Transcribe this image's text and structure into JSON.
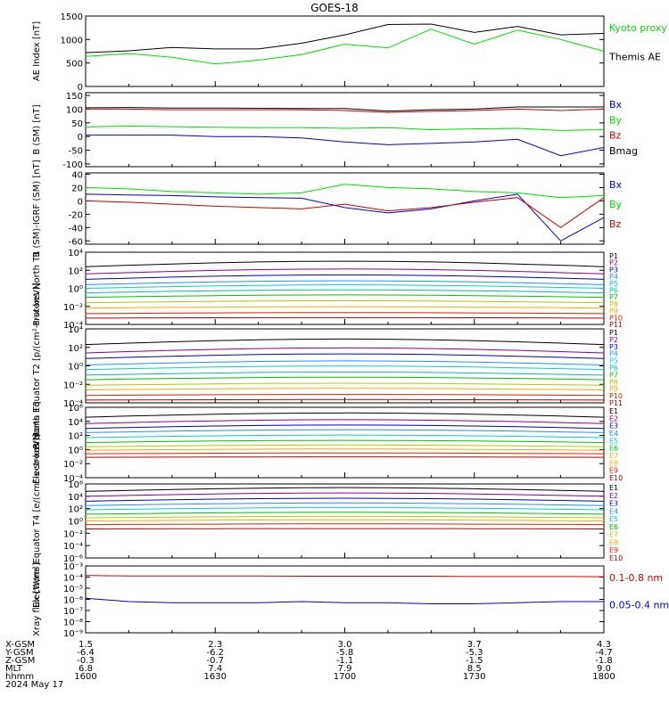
{
  "title": "GOES-18",
  "date": "2024 May 17",
  "colors": {
    "black": "#000000",
    "green": "#00dd00",
    "blue": "#0000cc",
    "red": "#cc0000",
    "P": [
      "#000000",
      "#8b008b",
      "#0000cd",
      "#1e90ff",
      "#00ced1",
      "#00c0a0",
      "#00c000",
      "#b0c800",
      "#ffa500",
      "#dd2200",
      "#b00000"
    ],
    "E": [
      "#000000",
      "#8b008b",
      "#0000cd",
      "#1e90ff",
      "#00ced1",
      "#00c000",
      "#b0c800",
      "#ffa500",
      "#dd2200",
      "#b00000"
    ]
  },
  "time_axis": {
    "ticks": [
      "1600",
      "1630",
      "1700",
      "1730",
      "1800"
    ],
    "rows": [
      {
        "label": "X-GSM",
        "values": [
          "1.5",
          "2.3",
          "3.0",
          "3.7",
          "4.3"
        ]
      },
      {
        "label": "Y-GSM",
        "values": [
          "-6.4",
          "-6.2",
          "-5.8",
          "-5.3",
          "-4.7"
        ]
      },
      {
        "label": "Z-GSM",
        "values": [
          "-0.3",
          "-0.7",
          "-1.1",
          "-1.5",
          "-1.8"
        ]
      },
      {
        "label": "MLT",
        "values": [
          "6.8",
          "7.4",
          "7.9",
          "8.5",
          "9.0"
        ]
      },
      {
        "label": "hhmm",
        "values": [
          "1600",
          "1630",
          "1700",
          "1730",
          "1800"
        ]
      }
    ]
  },
  "chart_data": [
    {
      "type": "line",
      "ylabel": "AE Index [nT]",
      "ylim": [
        0,
        1500
      ],
      "yticks": [
        "0",
        "500",
        "1000",
        "1500"
      ],
      "legend": [
        "Kyoto proxy AE",
        "Themis AE"
      ],
      "x": [
        "1600",
        "1610",
        "1620",
        "1630",
        "1640",
        "1650",
        "1700",
        "1710",
        "1720",
        "1730",
        "1740",
        "1750",
        "1800"
      ],
      "series": [
        {
          "name": "Kyoto proxy AE",
          "color": "green",
          "values": [
            640,
            700,
            620,
            480,
            560,
            680,
            900,
            820,
            1220,
            900,
            1200,
            1000,
            750
          ]
        },
        {
          "name": "Themis AE",
          "color": "black",
          "values": [
            720,
            760,
            830,
            800,
            800,
            920,
            1100,
            1320,
            1330,
            1150,
            1280,
            1100,
            1130
          ]
        }
      ]
    },
    {
      "type": "line",
      "ylabel": "B (SM) [nT]",
      "ylim": [
        -110,
        160
      ],
      "yticks": [
        "-100",
        "-50",
        "0",
        "50",
        "100",
        "150"
      ],
      "legend": [
        "Bx",
        "By",
        "Bz",
        "Bmag"
      ],
      "x": [
        "1600",
        "1610",
        "1620",
        "1630",
        "1640",
        "1650",
        "1700",
        "1710",
        "1720",
        "1730",
        "1740",
        "1750",
        "1800"
      ],
      "series": [
        {
          "name": "Bx",
          "color": "blue",
          "values": [
            5,
            5,
            5,
            0,
            0,
            -5,
            -20,
            -30,
            -25,
            -20,
            -10,
            -70,
            -40
          ]
        },
        {
          "name": "By",
          "color": "green",
          "values": [
            35,
            38,
            36,
            34,
            32,
            32,
            30,
            32,
            25,
            28,
            30,
            22,
            25
          ]
        },
        {
          "name": "Bz",
          "color": "red",
          "values": [
            100,
            100,
            98,
            98,
            98,
            98,
            95,
            88,
            92,
            95,
            100,
            95,
            100
          ]
        },
        {
          "name": "Bmag",
          "color": "black",
          "values": [
            105,
            106,
            104,
            104,
            103,
            102,
            102,
            93,
            98,
            100,
            108,
            108,
            108
          ]
        }
      ]
    },
    {
      "type": "line",
      "ylabel": "B (SM)-IGRF (SM) [nT]",
      "ylim": [
        -65,
        42
      ],
      "yticks": [
        "-60",
        "-40",
        "-20",
        "0",
        "20",
        "40"
      ],
      "legend": [
        "Bx",
        "By",
        "Bz"
      ],
      "x": [
        "1600",
        "1610",
        "1620",
        "1630",
        "1640",
        "1650",
        "1700",
        "1710",
        "1720",
        "1730",
        "1740",
        "1750",
        "1800"
      ],
      "series": [
        {
          "name": "Bx",
          "color": "blue",
          "values": [
            10,
            9,
            8,
            6,
            5,
            4,
            -10,
            -18,
            -12,
            0,
            10,
            -60,
            -25
          ]
        },
        {
          "name": "By",
          "color": "green",
          "values": [
            20,
            18,
            14,
            12,
            10,
            12,
            25,
            20,
            18,
            14,
            12,
            5,
            8
          ]
        },
        {
          "name": "Bz",
          "color": "red",
          "values": [
            0,
            -2,
            -5,
            -8,
            -10,
            -12,
            -5,
            -15,
            -10,
            -2,
            5,
            -40,
            5
          ]
        }
      ]
    },
    {
      "type": "line",
      "log": true,
      "ylabel": "Protons North T1",
      "ylim": [
        -4,
        4
      ],
      "yticks": [
        "10⁻⁴",
        "10⁻²",
        "10⁰",
        "10²",
        "10⁴"
      ],
      "legend": [
        "P1",
        "P2",
        "P3",
        "P4",
        "P5",
        "P6",
        "P7",
        "P8",
        "P9",
        "P10",
        "P11"
      ],
      "levels": [
        2.4,
        1.6,
        1.0,
        0.4,
        0,
        -0.5,
        -1.0,
        -1.6,
        -2.2,
        -2.8,
        -3.3
      ]
    },
    {
      "type": "line",
      "log": true,
      "ylabel": "Protons Equator T2 [p/(cm²-s-sr-keV)]",
      "ylim": [
        -4,
        4
      ],
      "yticks": [
        "10⁻⁴",
        "10⁻²",
        "10⁰",
        "10²",
        "10⁴"
      ],
      "legend": [
        "P1",
        "P2",
        "P3",
        "P4",
        "P5",
        "P6",
        "P7",
        "P8",
        "P9",
        "P10",
        "P11"
      ],
      "levels": [
        2.3,
        1.4,
        0.8,
        0.1,
        -0.4,
        -1.0,
        -1.5,
        -2.1,
        -2.6,
        -3.2,
        -3.7
      ]
    },
    {
      "type": "line",
      "log": true,
      "ylabel": "Electrons North T3",
      "ylim": [
        -4,
        6
      ],
      "yticks": [
        "10⁻⁴",
        "10⁻²",
        "10⁰",
        "10²",
        "10⁴",
        "10⁶"
      ],
      "legend": [
        "E1",
        "E2",
        "E3",
        "E4",
        "E5",
        "E6",
        "E7",
        "E8",
        "E9",
        "E10"
      ],
      "levels": [
        4.6,
        3.7,
        3.0,
        2.4,
        1.7,
        1.0,
        0.4,
        -0.1,
        -0.6,
        -1.1
      ]
    },
    {
      "type": "line",
      "log": true,
      "ylabel": "Electrons Equator T4 [e/(cm²-s-sr-keV)]",
      "ylim": [
        -6,
        6
      ],
      "yticks": [
        "10⁻⁶",
        "10⁻⁴",
        "10⁻²",
        "10⁰",
        "10²",
        "10⁴",
        "10⁶"
      ],
      "legend": [
        "E1",
        "E2",
        "E3",
        "E4",
        "E5",
        "E6",
        "E7",
        "E8",
        "E9",
        "E10"
      ],
      "levels": [
        4.8,
        4.0,
        3.2,
        2.5,
        1.8,
        1.1,
        0.5,
        0,
        -0.6,
        -1.3
      ]
    },
    {
      "type": "line",
      "log": true,
      "ylabel": "Xray flux [W/m²]",
      "ylim": [
        -9,
        -3
      ],
      "yticks": [
        "10⁻⁹",
        "10⁻⁸",
        "10⁻⁷",
        "10⁻⁶",
        "10⁻⁵",
        "10⁻⁴",
        "10⁻³"
      ],
      "legend": [
        "0.1-0.8 nm",
        "0.05-0.4 nm"
      ],
      "x": [
        "1600",
        "1610",
        "1620",
        "1630",
        "1640",
        "1650",
        "1700",
        "1710",
        "1720",
        "1730",
        "1740",
        "1750",
        "1800"
      ],
      "series": [
        {
          "name": "0.1-0.8 nm",
          "color": "red",
          "values": [
            -3.85,
            -3.9,
            -3.9,
            -3.9,
            -3.9,
            -3.92,
            -3.92,
            -3.92,
            -3.92,
            -3.95,
            -3.95,
            -3.95,
            -3.97
          ]
        },
        {
          "name": "0.05-0.4 nm",
          "color": "blue",
          "values": [
            -5.9,
            -6.2,
            -6.3,
            -6.3,
            -6.3,
            -6.2,
            -6.3,
            -6.3,
            -6.4,
            -6.4,
            -6.3,
            -6.2,
            -6.2
          ]
        }
      ]
    }
  ]
}
